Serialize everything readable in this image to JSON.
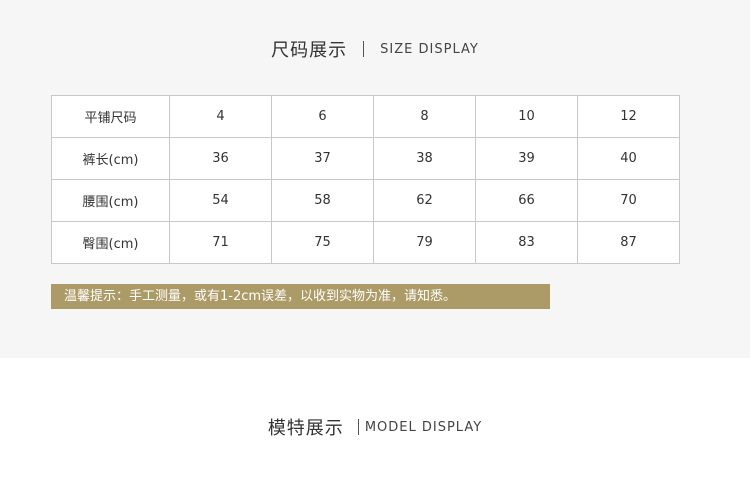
{
  "size_section": {
    "title_cn": "尺码展示",
    "title_en": "SIZE DISPLAY"
  },
  "table": {
    "header": [
      "平铺尺码",
      "4",
      "6",
      "8",
      "10",
      "12"
    ],
    "rows": [
      [
        "裤长(cm)",
        "36",
        "37",
        "38",
        "39",
        "40"
      ],
      [
        "腰围(cm)",
        "54",
        "58",
        "62",
        "66",
        "70"
      ],
      [
        "臀围(cm)",
        "71",
        "75",
        "79",
        "83",
        "87"
      ]
    ]
  },
  "note": "温馨提示：手工测量，或有1-2cm误差，以收到实物为准，请知悉。",
  "model_section": {
    "title_cn": "模特展示",
    "title_en": "MODEL DISPLAY"
  },
  "colors": {
    "accent": "#ad9b67",
    "panel": "#f6f6f6"
  }
}
